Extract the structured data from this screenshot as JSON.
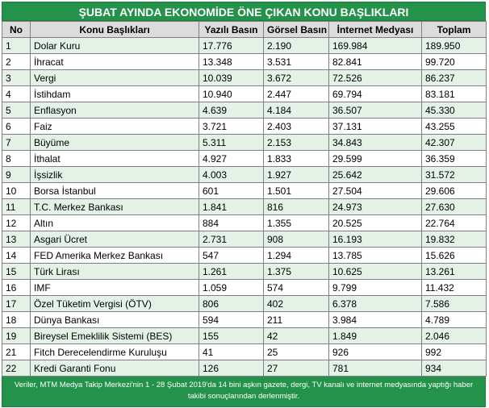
{
  "title": "ŞUBAT AYINDA EKONOMİDE ÖNE ÇIKAN KONU BAŞLIKLARI",
  "headers": {
    "no": "No",
    "topic": "Konu Başlıkları",
    "written": "Yazılı Basın",
    "visual": "Görsel Basın",
    "internet": "İnternet Medyası",
    "total": "Toplam"
  },
  "rows": [
    {
      "no": "1",
      "topic": "Dolar Kuru",
      "written": "17.776",
      "visual": "2.190",
      "internet": "169.984",
      "total": "189.950"
    },
    {
      "no": "2",
      "topic": "İhracat",
      "written": "13.348",
      "visual": "3.531",
      "internet": "82.841",
      "total": "99.720"
    },
    {
      "no": "3",
      "topic": "Vergi",
      "written": "10.039",
      "visual": "3.672",
      "internet": "72.526",
      "total": "86.237"
    },
    {
      "no": "4",
      "topic": "İstihdam",
      "written": "10.940",
      "visual": "2.447",
      "internet": "69.794",
      "total": "83.181"
    },
    {
      "no": "5",
      "topic": "Enflasyon",
      "written": "4.639",
      "visual": "4.184",
      "internet": "36.507",
      "total": "45.330"
    },
    {
      "no": "6",
      "topic": "Faiz",
      "written": "3.721",
      "visual": "2.403",
      "internet": "37.131",
      "total": "43.255"
    },
    {
      "no": "7",
      "topic": "Büyüme",
      "written": "5.311",
      "visual": "2.153",
      "internet": "34.843",
      "total": "42.307"
    },
    {
      "no": "8",
      "topic": "İthalat",
      "written": "4.927",
      "visual": "1.833",
      "internet": "29.599",
      "total": "36.359"
    },
    {
      "no": "9",
      "topic": "İşsizlik",
      "written": "4.003",
      "visual": "1.927",
      "internet": "25.642",
      "total": "31.572"
    },
    {
      "no": "10",
      "topic": "Borsa İstanbul",
      "written": "601",
      "visual": "1.501",
      "internet": "27.504",
      "total": "29.606"
    },
    {
      "no": "11",
      "topic": "T.C. Merkez Bankası",
      "written": "1.841",
      "visual": "816",
      "internet": "24.973",
      "total": "27.630"
    },
    {
      "no": "12",
      "topic": "Altın",
      "written": "884",
      "visual": "1.355",
      "internet": "20.525",
      "total": "22.764"
    },
    {
      "no": "13",
      "topic": "Asgari Ücret",
      "written": "2.731",
      "visual": "908",
      "internet": "16.193",
      "total": "19.832"
    },
    {
      "no": "14",
      "topic": "FED Amerika Merkez Bankası",
      "written": "547",
      "visual": "1.294",
      "internet": "13.785",
      "total": "15.626"
    },
    {
      "no": "15",
      "topic": "Türk Lirası",
      "written": "1.261",
      "visual": "1.375",
      "internet": "10.625",
      "total": "13.261"
    },
    {
      "no": "16",
      "topic": "IMF",
      "written": "1.059",
      "visual": "574",
      "internet": "9.799",
      "total": "11.432"
    },
    {
      "no": "17",
      "topic": "Özel Tüketim Vergisi (ÖTV)",
      "written": "806",
      "visual": "402",
      "internet": "6.378",
      "total": "7.586"
    },
    {
      "no": "18",
      "topic": "Dünya Bankası",
      "written": "594",
      "visual": "211",
      "internet": "3.984",
      "total": "4.789"
    },
    {
      "no": "19",
      "topic": "Bireysel Emeklilik Sistemi (BES)",
      "written": "155",
      "visual": "42",
      "internet": "1.849",
      "total": "2.046"
    },
    {
      "no": "21",
      "topic": "Fitch Derecelendirme Kuruluşu",
      "written": "41",
      "visual": "25",
      "internet": "926",
      "total": "992"
    },
    {
      "no": "22",
      "topic": "Kredi Garanti Fonu",
      "written": "126",
      "visual": "27",
      "internet": "781",
      "total": "934"
    }
  ],
  "footer": "Veriler, MTM Medya Takip Merkezi'nin 1 - 28 Şubat 2019'da 14 bini aşkın gazete, dergi, TV kanalı ve internet medyasında yaptığı haber takibi sonuçlarından derlenmiştir.",
  "colors": {
    "header_green": "#24924b",
    "row_alt": "#e3f1e6",
    "column_header": "#dcdcdc"
  }
}
